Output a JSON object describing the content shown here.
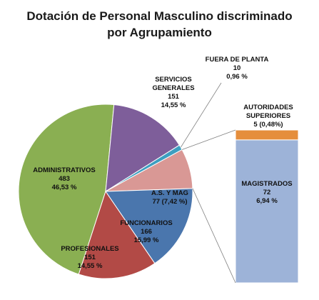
{
  "title_line1": "Dotación de Personal Masculino discriminado",
  "title_line2": "por Agrupamiento",
  "chart_data": {
    "type": "pie",
    "title": "Dotación de Personal Masculino discriminado por Agrupamiento",
    "slices": [
      {
        "name": "ADMINISTRATIVOS",
        "value": 483,
        "percent_label": "46,53 %",
        "color": "#8aaf52"
      },
      {
        "name": "SERVICIOS GENERALES",
        "value": 151,
        "percent_label": "14,55 %",
        "color": "#7e5e9a"
      },
      {
        "name": "FUERA DE PLANTA",
        "value": 10,
        "percent_label": "0,96 %",
        "color": "#3d9fc0"
      },
      {
        "name": "A.S. Y MAG",
        "value": 77,
        "percent_label": "7,42 %",
        "color": "#d99895"
      },
      {
        "name": "FUNCIONARIOS",
        "value": 166,
        "percent_label": "15,99 %",
        "color": "#4a76ad"
      },
      {
        "name": "PROFESIONALES",
        "value": 151,
        "percent_label": "14,55 %",
        "color": "#b24a46"
      }
    ],
    "breakdown": {
      "of": "A.S. Y MAG",
      "parts": [
        {
          "name": "AUTORIDADES SUPERIORES",
          "value": 5,
          "percent_label": "0,48%",
          "color": "#e58e3c"
        },
        {
          "name": "MAGISTRADOS",
          "value": 72,
          "percent_label": "6,94 %",
          "color": "#9db3d8"
        }
      ]
    }
  },
  "labels": {
    "administrativos": {
      "name": "ADMINISTRATIVOS",
      "value": "483",
      "pct": "46,53 %"
    },
    "servicios": {
      "name1": "SERVICIOS",
      "name2": "GENERALES",
      "value": "151",
      "pct": "14,55 %"
    },
    "fuera": {
      "name": "FUERA DE PLANTA",
      "value": "10",
      "pct": "0,96 %"
    },
    "asymag": {
      "name": "A.S. Y MAG",
      "value_pct": "77  (7,42 %)"
    },
    "funcionarios": {
      "name": "FUNCIONARIOS",
      "value": "166",
      "pct": "15,99 %"
    },
    "profesionales": {
      "name": "PROFESIONALES",
      "value": "151",
      "pct": "14,55 %"
    },
    "autoridades": {
      "name1": "AUTORIDADES",
      "name2": "SUPERIORES",
      "value_pct": "5  (0,48%)"
    },
    "magistrados": {
      "name": "MAGISTRADOS",
      "value": "72",
      "pct": "6,94 %"
    }
  }
}
